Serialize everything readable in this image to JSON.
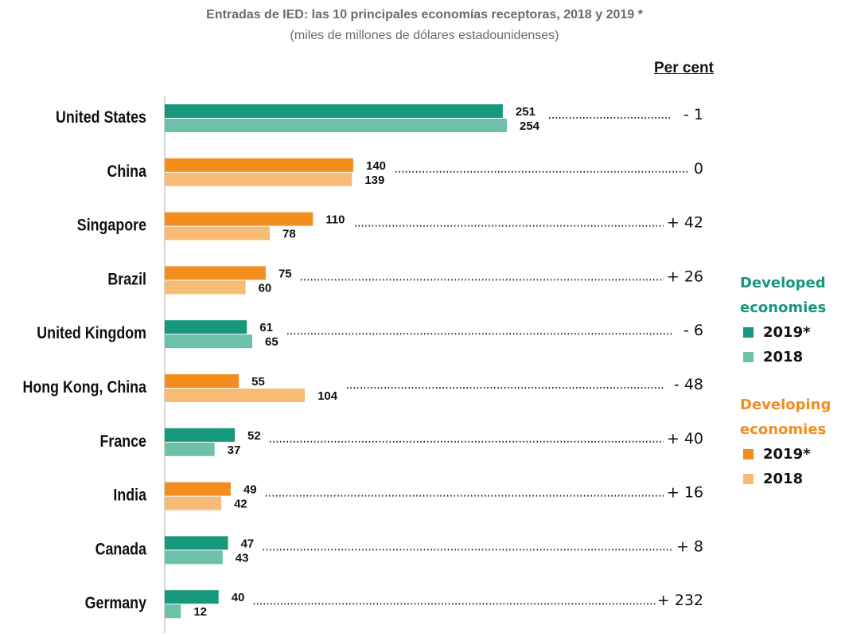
{
  "title": "Entradas de IED: las 10 principales economías receptoras, 2018 y 2019 *",
  "subtitle": "(miles de millones de dólares estadounidenses)",
  "percent_header": "Per cent",
  "colors": {
    "developed_2019": "#17977b",
    "developed_2018": "#6dc1aa",
    "developing_2019": "#f28d1e",
    "developing_2018": "#f6bc76"
  },
  "legend": {
    "developed": {
      "title": "Developed economies",
      "title_line1": "Developed",
      "title_line2": "economies",
      "item_2019": "2019*",
      "item_2018": "2018"
    },
    "developing": {
      "title": "Developing economies",
      "title_line1": "Developing",
      "title_line2": "economies",
      "item_2019": "2019*",
      "item_2018": "2018"
    }
  },
  "chart_data": {
    "type": "bar",
    "orientation": "horizontal",
    "title": "Entradas de IED: las 10 principales economías receptoras, 2018 y 2019 *",
    "subtitle": "(miles de millones de dólares estadounidenses)",
    "categories": [
      "United States",
      "China",
      "Singapore",
      "Brazil",
      "United Kingdom",
      "Hong Kong, China",
      "France",
      "India",
      "Canada",
      "Germany"
    ],
    "groups": [
      "developed",
      "developing",
      "developing",
      "developing",
      "developed",
      "developing",
      "developed",
      "developing",
      "developed",
      "developed"
    ],
    "series": [
      {
        "name": "2019*",
        "values": [
          251,
          140,
          110,
          75,
          61,
          55,
          52,
          49,
          47,
          40
        ]
      },
      {
        "name": "2018",
        "values": [
          254,
          139,
          78,
          60,
          65,
          104,
          37,
          42,
          43,
          12
        ]
      }
    ],
    "percent_change": [
      "- 1",
      "0",
      "+ 42",
      "+ 26",
      "- 6",
      "- 48",
      "+ 40",
      "+ 16",
      "+ 8",
      "+ 232"
    ],
    "xlim": [
      0,
      254
    ],
    "grid": false,
    "legend_position": "right"
  }
}
